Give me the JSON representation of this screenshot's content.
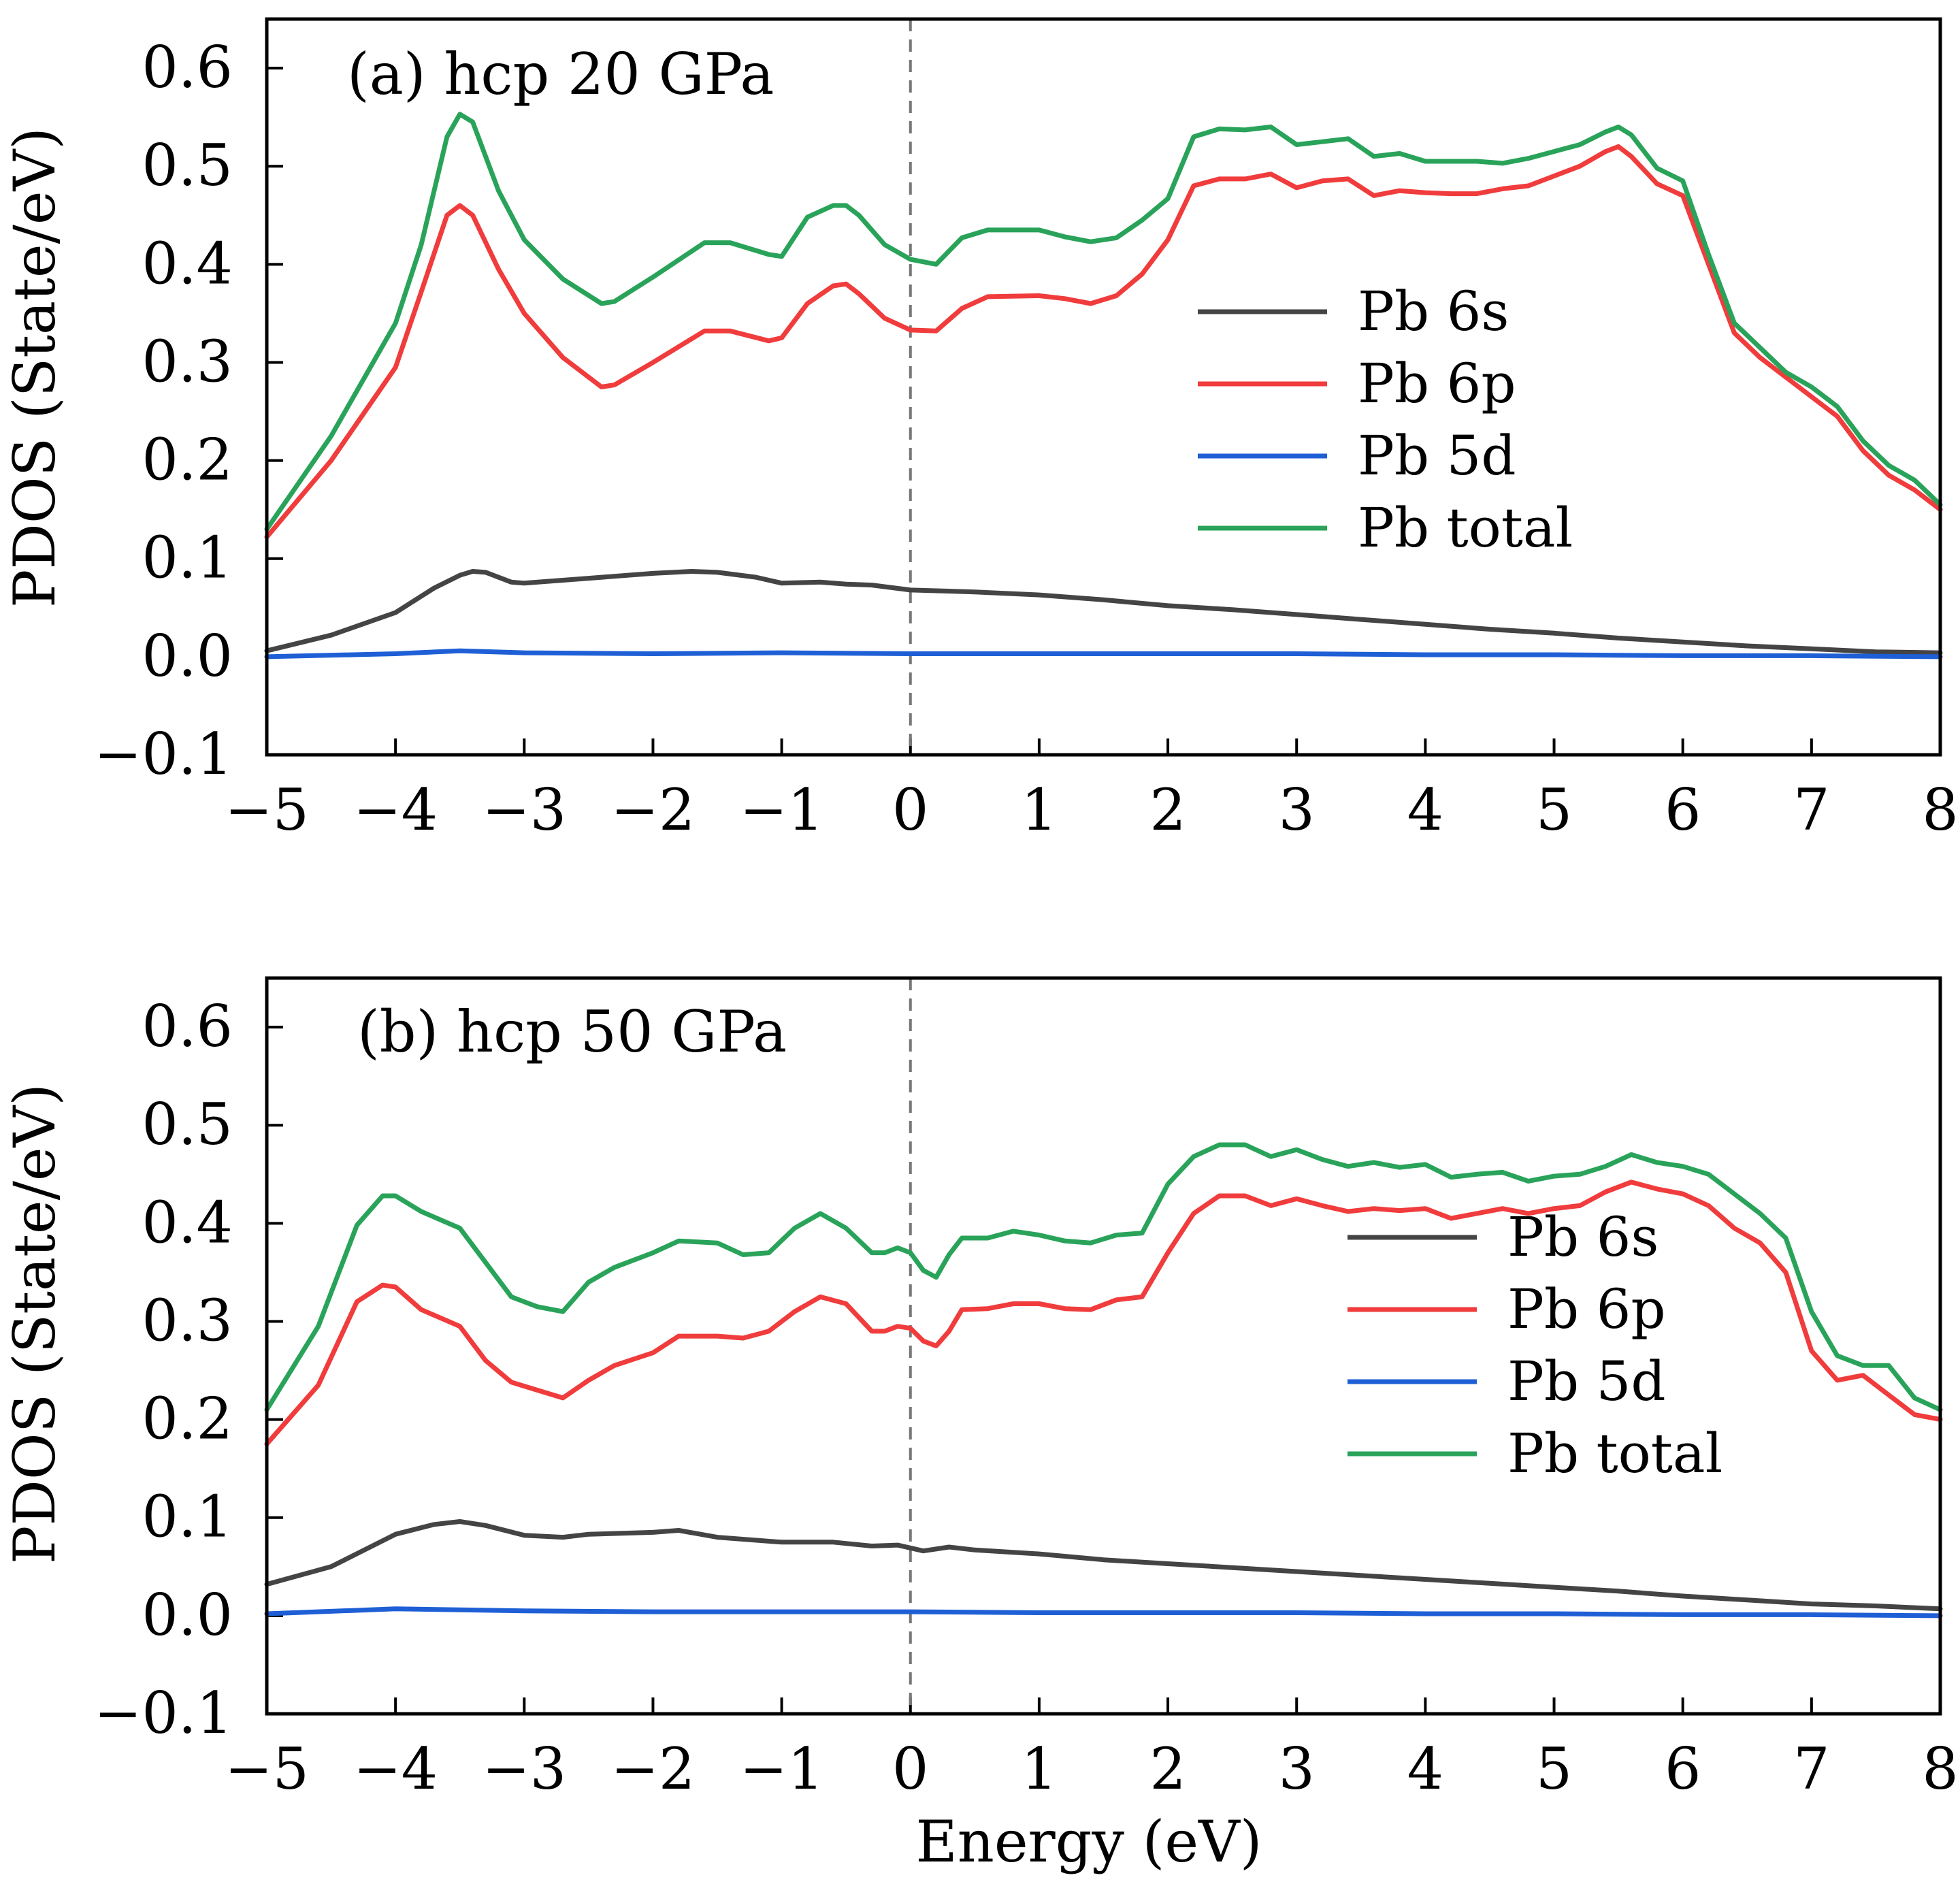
{
  "figure": {
    "ylabel": "PDOS (State/eV)",
    "xlabel": "Energy (eV)"
  },
  "colors": {
    "s": "#444444",
    "p": "#f03c3c",
    "d": "#1f5fd6",
    "total": "#2aa35a",
    "fermi": "#777777"
  },
  "chart_data": [
    {
      "type": "line",
      "title": "(a) hcp 20 GPa",
      "xlabel": "",
      "ylabel": "PDOS (State/eV)",
      "xlim": [
        -5,
        8
      ],
      "ylim": [
        -0.1,
        0.65
      ],
      "xticks": [
        -5,
        -4,
        -3,
        -2,
        -1,
        0,
        1,
        2,
        3,
        4,
        5,
        6,
        7,
        8
      ],
      "xtick_labels": [
        "−5",
        "−4",
        "−3",
        "−2",
        "−1",
        "0",
        "1",
        "2",
        "3",
        "4",
        "5",
        "6",
        "7",
        "8"
      ],
      "yticks": [
        -0.1,
        0.0,
        0.1,
        0.2,
        0.3,
        0.4,
        0.5,
        0.6
      ],
      "ytick_labels": [
        "−0.1",
        "0.0",
        "0.1",
        "0.2",
        "0.3",
        "0.4",
        "0.5",
        "0.6"
      ],
      "fermi_level": 0,
      "legend": {
        "placement": "center-right"
      },
      "series": [
        {
          "name": "Pb 6s",
          "key": "s",
          "x": [
            -5,
            -4.5,
            -4,
            -3.7,
            -3.5,
            -3.4,
            -3.3,
            -3.1,
            -3,
            -2.5,
            -2,
            -1.7,
            -1.5,
            -1.2,
            -1,
            -0.7,
            -0.5,
            -0.3,
            0,
            0.5,
            1,
            1.5,
            2,
            2.5,
            3,
            3.5,
            4,
            4.5,
            5,
            5.5,
            6,
            6.5,
            7,
            7.5,
            8
          ],
          "y": [
            0.006,
            0.022,
            0.045,
            0.07,
            0.083,
            0.087,
            0.086,
            0.076,
            0.075,
            0.08,
            0.085,
            0.087,
            0.086,
            0.081,
            0.075,
            0.076,
            0.074,
            0.073,
            0.068,
            0.066,
            0.063,
            0.058,
            0.052,
            0.048,
            0.043,
            0.038,
            0.033,
            0.028,
            0.024,
            0.019,
            0.015,
            0.011,
            0.008,
            0.005,
            0.004
          ]
        },
        {
          "name": "Pb 6p",
          "key": "p",
          "x": [
            -5,
            -4.5,
            -4,
            -3.8,
            -3.6,
            -3.5,
            -3.4,
            -3.2,
            -3,
            -2.7,
            -2.4,
            -2.3,
            -2,
            -1.6,
            -1.4,
            -1.1,
            -1,
            -0.8,
            -0.6,
            -0.5,
            -0.4,
            -0.2,
            0,
            0.2,
            0.4,
            0.6,
            1,
            1.2,
            1.4,
            1.6,
            1.8,
            2,
            2.2,
            2.4,
            2.6,
            2.8,
            3,
            3.2,
            3.4,
            3.6,
            3.8,
            4,
            4.2,
            4.4,
            4.6,
            4.8,
            5,
            5.2,
            5.4,
            5.5,
            5.6,
            5.8,
            6,
            6.2,
            6.4,
            6.6,
            6.8,
            7,
            7.2,
            7.4,
            7.6,
            7.8,
            8
          ],
          "y": [
            0.122,
            0.2,
            0.295,
            0.372,
            0.45,
            0.46,
            0.45,
            0.395,
            0.35,
            0.305,
            0.275,
            0.277,
            0.3,
            0.332,
            0.332,
            0.322,
            0.325,
            0.36,
            0.378,
            0.38,
            0.37,
            0.345,
            0.333,
            0.332,
            0.355,
            0.367,
            0.368,
            0.365,
            0.36,
            0.368,
            0.39,
            0.425,
            0.48,
            0.487,
            0.487,
            0.492,
            0.478,
            0.485,
            0.487,
            0.47,
            0.475,
            0.473,
            0.472,
            0.472,
            0.477,
            0.48,
            0.49,
            0.5,
            0.515,
            0.52,
            0.51,
            0.482,
            0.47,
            0.4,
            0.33,
            0.305,
            0.285,
            0.265,
            0.245,
            0.21,
            0.185,
            0.17,
            0.15
          ]
        },
        {
          "name": "Pb 5d",
          "key": "d",
          "x": [
            -5,
            -4,
            -3.5,
            -3,
            -2,
            -1,
            0,
            1,
            2,
            3,
            4,
            5,
            6,
            7,
            8
          ],
          "y": [
            0.0,
            0.003,
            0.006,
            0.004,
            0.003,
            0.004,
            0.003,
            0.003,
            0.003,
            0.003,
            0.002,
            0.002,
            0.001,
            0.001,
            0.0
          ]
        },
        {
          "name": "Pb total",
          "key": "total",
          "x": [
            -5,
            -4.5,
            -4,
            -3.8,
            -3.6,
            -3.5,
            -3.4,
            -3.2,
            -3,
            -2.7,
            -2.4,
            -2.3,
            -2,
            -1.6,
            -1.4,
            -1.1,
            -1,
            -0.8,
            -0.6,
            -0.5,
            -0.4,
            -0.2,
            0,
            0.2,
            0.4,
            0.6,
            1,
            1.2,
            1.4,
            1.6,
            1.8,
            2,
            2.2,
            2.4,
            2.6,
            2.8,
            3,
            3.2,
            3.4,
            3.6,
            3.8,
            4,
            4.2,
            4.4,
            4.6,
            4.8,
            5,
            5.2,
            5.4,
            5.5,
            5.6,
            5.8,
            6,
            6.2,
            6.4,
            6.6,
            6.8,
            7,
            7.2,
            7.4,
            7.6,
            7.8,
            8
          ],
          "y": [
            0.13,
            0.225,
            0.34,
            0.42,
            0.53,
            0.553,
            0.545,
            0.475,
            0.425,
            0.385,
            0.36,
            0.362,
            0.387,
            0.422,
            0.422,
            0.41,
            0.408,
            0.448,
            0.46,
            0.46,
            0.45,
            0.42,
            0.405,
            0.4,
            0.427,
            0.435,
            0.435,
            0.428,
            0.423,
            0.427,
            0.445,
            0.467,
            0.53,
            0.538,
            0.537,
            0.54,
            0.522,
            0.525,
            0.528,
            0.51,
            0.513,
            0.505,
            0.505,
            0.505,
            0.503,
            0.508,
            0.515,
            0.522,
            0.535,
            0.54,
            0.532,
            0.498,
            0.485,
            0.41,
            0.34,
            0.315,
            0.29,
            0.275,
            0.255,
            0.22,
            0.195,
            0.18,
            0.155
          ]
        }
      ]
    },
    {
      "type": "line",
      "title": "(b) hcp 50 GPa",
      "xlabel": "Energy (eV)",
      "ylabel": "PDOS (State/eV)",
      "xlim": [
        -5,
        8
      ],
      "ylim": [
        -0.1,
        0.65
      ],
      "xticks": [
        -5,
        -4,
        -3,
        -2,
        -1,
        0,
        1,
        2,
        3,
        4,
        5,
        6,
        7,
        8
      ],
      "xtick_labels": [
        "−5",
        "−4",
        "−3",
        "−2",
        "−1",
        "0",
        "1",
        "2",
        "3",
        "4",
        "5",
        "6",
        "7",
        "8"
      ],
      "yticks": [
        -0.1,
        0.0,
        0.1,
        0.2,
        0.3,
        0.4,
        0.5,
        0.6
      ],
      "ytick_labels": [
        "−0.1",
        "0.0",
        "0.1",
        "0.2",
        "0.3",
        "0.4",
        "0.5",
        "0.6"
      ],
      "fermi_level": 0,
      "legend": {
        "placement": "center-right"
      },
      "series": [
        {
          "name": "Pb 6s",
          "key": "s",
          "x": [
            -5,
            -4.5,
            -4,
            -3.7,
            -3.5,
            -3.3,
            -3,
            -2.7,
            -2.5,
            -2,
            -1.8,
            -1.5,
            -1,
            -0.6,
            -0.3,
            -0.1,
            0.1,
            0.3,
            0.5,
            1,
            1.5,
            2,
            2.5,
            3,
            3.5,
            4,
            4.5,
            5,
            5.5,
            6,
            6.5,
            7,
            7.5,
            8
          ],
          "y": [
            0.032,
            0.05,
            0.083,
            0.093,
            0.096,
            0.092,
            0.082,
            0.08,
            0.083,
            0.085,
            0.087,
            0.08,
            0.075,
            0.075,
            0.071,
            0.072,
            0.066,
            0.07,
            0.067,
            0.063,
            0.057,
            0.053,
            0.049,
            0.045,
            0.041,
            0.037,
            0.033,
            0.029,
            0.025,
            0.02,
            0.016,
            0.012,
            0.01,
            0.007
          ]
        },
        {
          "name": "Pb 6p",
          "key": "p",
          "x": [
            -5,
            -4.6,
            -4.3,
            -4.1,
            -4,
            -3.8,
            -3.5,
            -3.3,
            -3.1,
            -2.9,
            -2.7,
            -2.5,
            -2.3,
            -2,
            -1.8,
            -1.5,
            -1.3,
            -1.1,
            -0.9,
            -0.7,
            -0.5,
            -0.3,
            -0.2,
            -0.1,
            0,
            0.1,
            0.2,
            0.3,
            0.4,
            0.6,
            0.8,
            1,
            1.2,
            1.4,
            1.6,
            1.8,
            2,
            2.2,
            2.4,
            2.6,
            2.8,
            3,
            3.2,
            3.4,
            3.6,
            3.8,
            4,
            4.2,
            4.4,
            4.6,
            4.8,
            5,
            5.2,
            5.4,
            5.6,
            5.8,
            6,
            6.2,
            6.4,
            6.6,
            6.8,
            7,
            7.2,
            7.4,
            7.6,
            7.8,
            8
          ],
          "y": [
            0.175,
            0.235,
            0.32,
            0.337,
            0.335,
            0.312,
            0.295,
            0.26,
            0.238,
            0.23,
            0.222,
            0.24,
            0.255,
            0.268,
            0.285,
            0.285,
            0.283,
            0.29,
            0.31,
            0.325,
            0.318,
            0.29,
            0.29,
            0.295,
            0.293,
            0.28,
            0.275,
            0.29,
            0.312,
            0.313,
            0.318,
            0.318,
            0.313,
            0.312,
            0.322,
            0.325,
            0.37,
            0.41,
            0.428,
            0.428,
            0.418,
            0.425,
            0.418,
            0.412,
            0.415,
            0.413,
            0.415,
            0.405,
            0.41,
            0.415,
            0.41,
            0.415,
            0.418,
            0.432,
            0.442,
            0.435,
            0.43,
            0.418,
            0.395,
            0.38,
            0.35,
            0.27,
            0.24,
            0.245,
            0.225,
            0.205,
            0.2
          ]
        },
        {
          "name": "Pb 5d",
          "key": "d",
          "x": [
            -5,
            -4,
            -3.5,
            -3,
            -2,
            -1,
            0,
            1,
            2,
            3,
            4,
            5,
            6,
            7,
            8
          ],
          "y": [
            0.002,
            0.007,
            0.006,
            0.005,
            0.004,
            0.004,
            0.004,
            0.003,
            0.003,
            0.003,
            0.002,
            0.002,
            0.001,
            0.001,
            0.0
          ]
        },
        {
          "name": "Pb total",
          "key": "total",
          "x": [
            -5,
            -4.6,
            -4.3,
            -4.1,
            -4,
            -3.8,
            -3.5,
            -3.3,
            -3.1,
            -2.9,
            -2.7,
            -2.5,
            -2.3,
            -2,
            -1.8,
            -1.5,
            -1.3,
            -1.1,
            -0.9,
            -0.7,
            -0.5,
            -0.3,
            -0.2,
            -0.1,
            0,
            0.1,
            0.2,
            0.3,
            0.4,
            0.6,
            0.8,
            1,
            1.2,
            1.4,
            1.6,
            1.8,
            2,
            2.2,
            2.4,
            2.6,
            2.8,
            3,
            3.2,
            3.4,
            3.6,
            3.8,
            4,
            4.2,
            4.4,
            4.6,
            4.8,
            5,
            5.2,
            5.4,
            5.6,
            5.8,
            6,
            6.2,
            6.4,
            6.6,
            6.8,
            7,
            7.2,
            7.4,
            7.6,
            7.8,
            8
          ],
          "y": [
            0.21,
            0.295,
            0.398,
            0.428,
            0.428,
            0.412,
            0.395,
            0.36,
            0.325,
            0.315,
            0.31,
            0.34,
            0.355,
            0.37,
            0.382,
            0.38,
            0.368,
            0.37,
            0.395,
            0.41,
            0.395,
            0.37,
            0.37,
            0.375,
            0.37,
            0.352,
            0.345,
            0.368,
            0.385,
            0.385,
            0.392,
            0.388,
            0.382,
            0.38,
            0.388,
            0.39,
            0.44,
            0.468,
            0.48,
            0.48,
            0.468,
            0.475,
            0.465,
            0.458,
            0.462,
            0.457,
            0.46,
            0.447,
            0.45,
            0.452,
            0.443,
            0.448,
            0.45,
            0.458,
            0.47,
            0.462,
            0.458,
            0.45,
            0.43,
            0.41,
            0.385,
            0.31,
            0.265,
            0.255,
            0.255,
            0.222,
            0.21
          ]
        }
      ]
    }
  ]
}
